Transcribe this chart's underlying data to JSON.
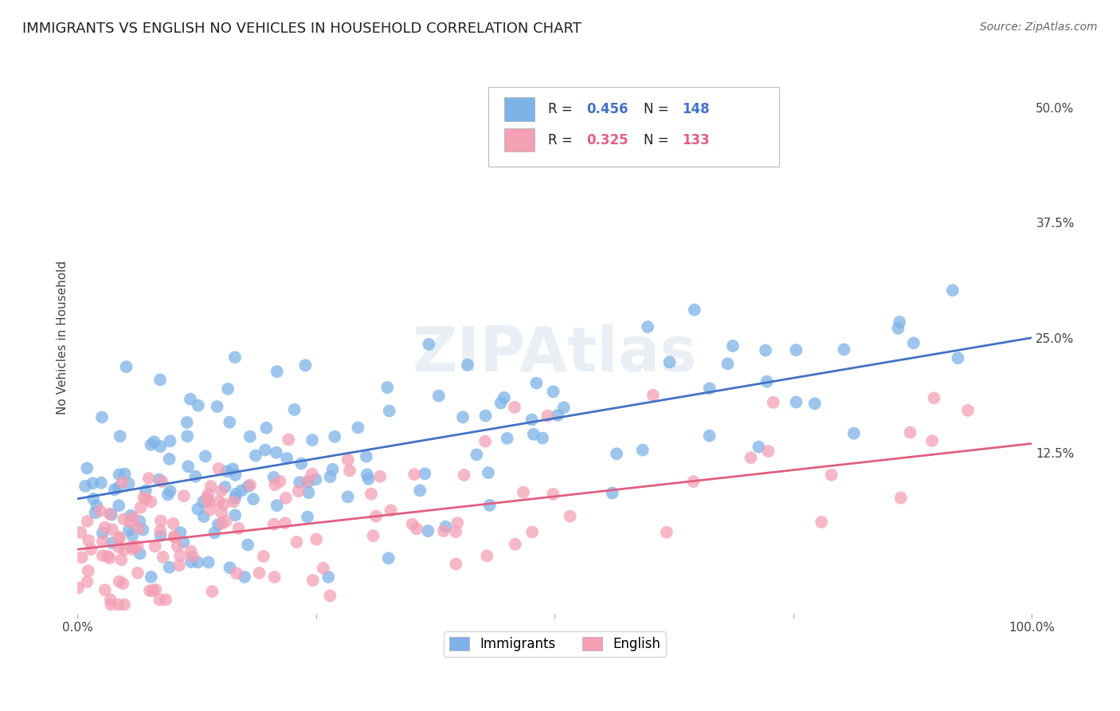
{
  "title": "IMMIGRANTS VS ENGLISH NO VEHICLES IN HOUSEHOLD CORRELATION CHART",
  "source": "Source: ZipAtlas.com",
  "ylabel": "No Vehicles in Household",
  "xlim": [
    0,
    1.0
  ],
  "ylim": [
    -0.05,
    0.55
  ],
  "yticks": [
    0.0,
    0.125,
    0.25,
    0.375,
    0.5
  ],
  "ytick_labels": [
    "",
    "12.5%",
    "25.0%",
    "37.5%",
    "50.0%"
  ],
  "xticks": [
    0.0,
    0.25,
    0.5,
    0.75,
    1.0
  ],
  "xtick_labels": [
    "0.0%",
    "",
    "",
    "",
    "100.0%"
  ],
  "blue_color": "#7EB3E8",
  "pink_color": "#F4A0B5",
  "blue_line_color": "#4472C4",
  "pink_line_color": "#E06080",
  "R_blue": 0.456,
  "N_blue": 148,
  "R_pink": 0.325,
  "N_pink": 133,
  "watermark": "ZIPAtlas",
  "background_color": "#ffffff",
  "grid_color": "#dddddd",
  "title_fontsize": 13,
  "source_fontsize": 10,
  "seed": 42,
  "blue_intercept": 0.075,
  "blue_slope": 0.175,
  "pink_intercept": 0.02,
  "pink_slope": 0.115
}
